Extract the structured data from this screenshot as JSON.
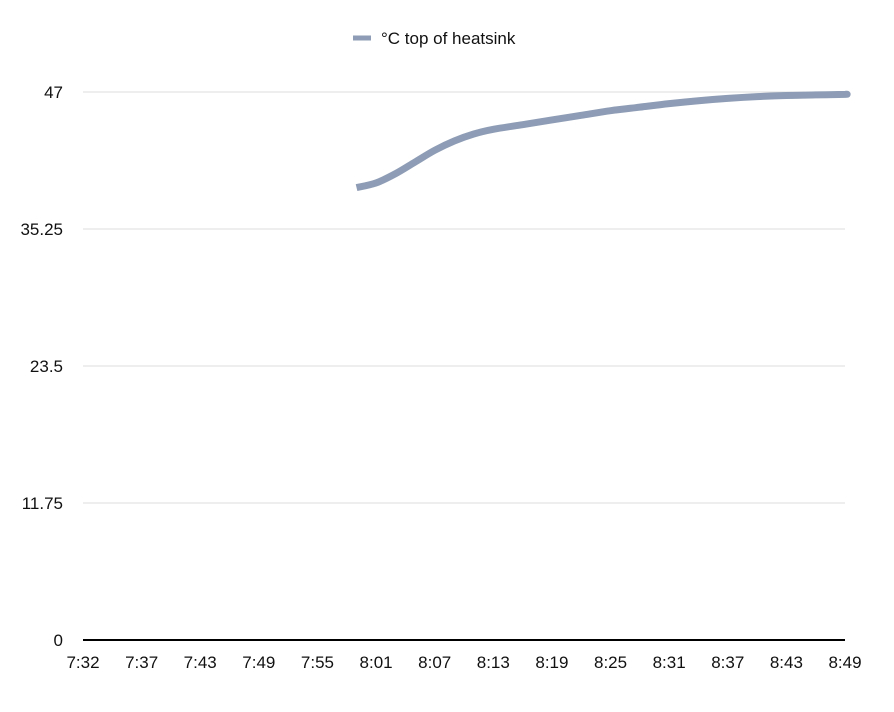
{
  "chart_data": {
    "type": "line",
    "title": "",
    "xlabel": "",
    "ylabel": "",
    "x_ticks": [
      "7:32",
      "7:37",
      "7:43",
      "7:49",
      "7:55",
      "8:01",
      "8:07",
      "8:13",
      "8:19",
      "8:25",
      "8:31",
      "8:37",
      "8:43",
      "8:49"
    ],
    "y_ticks": [
      "0",
      "11.75",
      "23.5",
      "35.25",
      "47"
    ],
    "ylim": [
      0,
      47
    ],
    "grid": true,
    "legend_position": "top-center",
    "series": [
      {
        "name": "°C top of heatsink",
        "color": "#8e9db5",
        "x": [
          "7:59",
          "8:01",
          "8:03",
          "8:05",
          "8:07",
          "8:09",
          "8:11",
          "8:13",
          "8:16",
          "8:19",
          "8:22",
          "8:25",
          "8:28",
          "8:31",
          "8:34",
          "8:37",
          "8:40",
          "8:43",
          "8:46",
          "8:49",
          "8:50"
        ],
        "y": [
          38.8,
          39.2,
          40.0,
          41.0,
          42.0,
          42.8,
          43.4,
          43.8,
          44.2,
          44.6,
          45.0,
          45.4,
          45.7,
          46.0,
          46.25,
          46.45,
          46.6,
          46.7,
          46.75,
          46.8,
          46.8
        ]
      }
    ]
  }
}
